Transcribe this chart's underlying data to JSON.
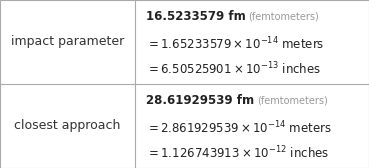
{
  "rows": [
    {
      "label": "impact parameter",
      "line1_bold": "16.5233579 fm",
      "line1_gray": "(femtometers)",
      "line2": "$= 1.65233579\\times10^{-14}$ meters",
      "line3": "$= 6.50525901\\times10^{-13}$ inches"
    },
    {
      "label": "closest approach",
      "line1_bold": "28.61929539 fm",
      "line1_gray": "(femtometers)",
      "line2": "$= 2.861929539\\times10^{-14}$ meters",
      "line3": "$= 1.126743913\\times10^{-12}$ inches"
    }
  ],
  "bg_color": "#ffffff",
  "border_color": "#aaaaaa",
  "label_color": "#333333",
  "main_color": "#222222",
  "gray_color": "#999999",
  "col_split": 0.365,
  "figsize": [
    3.69,
    1.68
  ],
  "dpi": 100,
  "fs_main": 8.5,
  "fs_bold": 8.5,
  "fs_gray": 7.0,
  "fs_label": 9.0
}
